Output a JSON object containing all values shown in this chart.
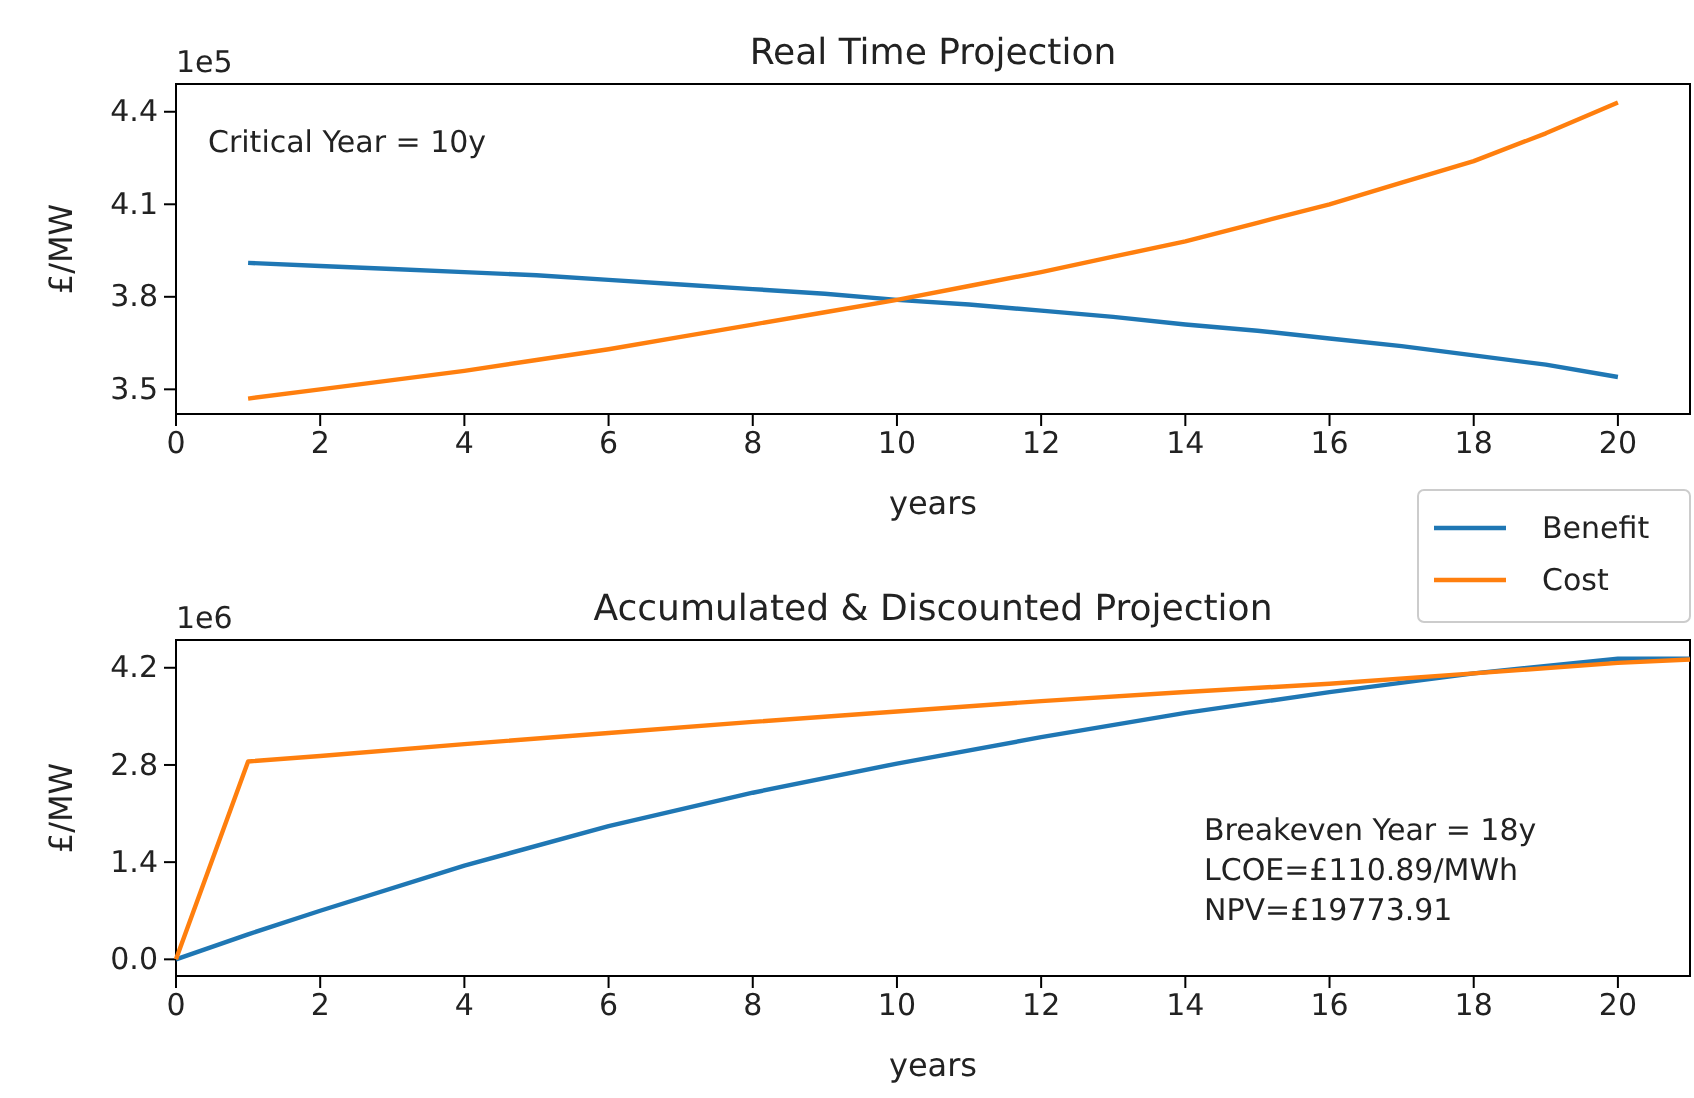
{
  "chart_data": [
    {
      "type": "line",
      "title": "Real Time Projection",
      "xlabel": "years",
      "ylabel": "£/MW",
      "x": [
        1,
        2,
        3,
        4,
        5,
        6,
        7,
        8,
        9,
        10,
        11,
        12,
        13,
        14,
        15,
        16,
        17,
        18,
        19,
        20
      ],
      "series": [
        {
          "name": "Benefit",
          "color": "#1f77b4",
          "values": [
            3.91,
            3.9,
            3.89,
            3.88,
            3.87,
            3.855,
            3.84,
            3.825,
            3.81,
            3.79,
            3.775,
            3.755,
            3.735,
            3.71,
            3.69,
            3.665,
            3.64,
            3.61,
            3.58,
            3.54
          ]
        },
        {
          "name": "Cost",
          "color": "#ff7f0e",
          "values": [
            3.47,
            3.5,
            3.53,
            3.56,
            3.595,
            3.63,
            3.67,
            3.71,
            3.75,
            3.79,
            3.835,
            3.88,
            3.93,
            3.98,
            4.04,
            4.1,
            4.17,
            4.24,
            4.33,
            4.43
          ]
        }
      ],
      "xlim": [
        0,
        21
      ],
      "xticks": [
        0,
        2,
        4,
        6,
        8,
        10,
        12,
        14,
        16,
        18,
        20
      ],
      "ylim": [
        3.42,
        4.49
      ],
      "yticks": [
        3.5,
        3.8,
        4.1,
        4.4
      ],
      "annotations": [
        "1e5",
        "Critical Year = 10y"
      ],
      "legend": "bottom right"
    },
    {
      "type": "line",
      "title": "Accumulated & Discounted Projection",
      "xlabel": "years",
      "ylabel": "£/MW",
      "x": [
        0,
        1,
        2,
        4,
        6,
        8,
        10,
        12,
        14,
        16,
        18,
        20,
        21
      ],
      "series": [
        {
          "color": "#1f77b4",
          "values": [
            0,
            0.36,
            0.7,
            1.35,
            1.92,
            2.4,
            2.82,
            3.2,
            3.55,
            3.85,
            4.12,
            4.33,
            4.33
          ]
        },
        {
          "color": "#ff7f0e",
          "values": [
            0,
            2.85,
            2.93,
            3.1,
            3.26,
            3.42,
            3.57,
            3.72,
            3.85,
            3.97,
            4.12,
            4.27,
            4.32
          ]
        }
      ],
      "xlim": [
        0,
        21
      ],
      "xticks": [
        0,
        2,
        4,
        6,
        8,
        10,
        12,
        14,
        16,
        18,
        20
      ],
      "ylim": [
        -0.24,
        4.6
      ],
      "yticks": [
        {
          "value": 0,
          "label": "0.0"
        },
        1.4,
        2.8,
        4.2
      ],
      "annotations": [
        "1e6",
        "Breakeven Year = 18y",
        "LCOE=£110.89/MWh",
        "NPV=£19773.91"
      ]
    }
  ]
}
